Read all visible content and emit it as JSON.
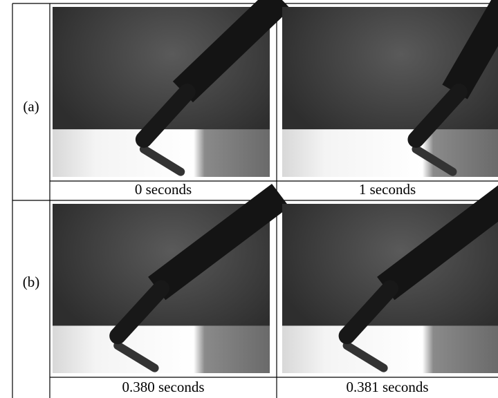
{
  "figure": {
    "rows": [
      {
        "label": "(a)",
        "captions": [
          "0 seconds",
          "1 seconds"
        ]
      },
      {
        "label": "(b)",
        "captions": [
          "0.380 seconds",
          "0.381 seconds"
        ]
      }
    ]
  }
}
